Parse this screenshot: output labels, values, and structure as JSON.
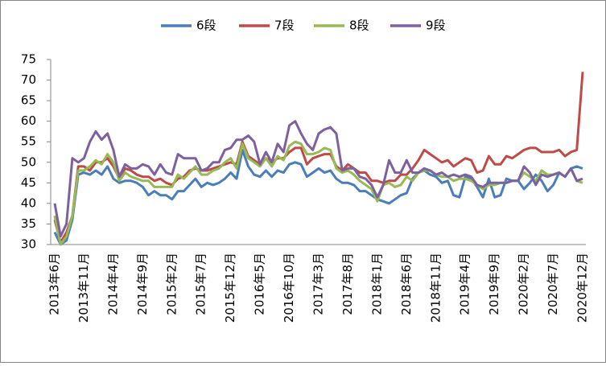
{
  "chart_data": {
    "type": "line",
    "categories": [
      "2013年6月",
      null,
      null,
      null,
      null,
      "2013年11月",
      null,
      null,
      null,
      null,
      "2014年4月",
      null,
      null,
      null,
      null,
      "2014年9月",
      null,
      null,
      null,
      null,
      "2015年2月",
      null,
      null,
      null,
      null,
      "2015年7月",
      null,
      null,
      null,
      null,
      "2015年12月",
      null,
      null,
      null,
      null,
      "2016年5月",
      null,
      null,
      null,
      null,
      "2016年10月",
      null,
      null,
      null,
      null,
      "2017年3月",
      null,
      null,
      null,
      null,
      "2017年8月",
      null,
      null,
      null,
      null,
      "2018年1月",
      null,
      null,
      null,
      null,
      "2018年6月",
      null,
      null,
      null,
      null,
      "2018年11月",
      null,
      null,
      null,
      null,
      "2019年4月",
      null,
      null,
      null,
      null,
      "2019年9月",
      null,
      null,
      null,
      null,
      "2020年2月",
      null,
      null,
      null,
      null,
      "2020年7月",
      null,
      null,
      null,
      null,
      "2020年12月"
    ],
    "series": [
      {
        "name": "6段",
        "color": "#4a7ebb",
        "values": [
          33,
          30,
          31,
          36,
          47,
          47.5,
          47,
          48,
          47,
          49,
          46,
          45,
          45.5,
          45.5,
          45,
          44,
          42,
          43,
          42,
          42,
          41,
          43,
          43,
          44.5,
          46,
          44,
          45,
          44.5,
          45,
          46,
          47.5,
          46,
          53,
          49,
          47,
          46.5,
          48,
          46.5,
          48,
          47.5,
          49.5,
          50,
          49.5,
          46.5,
          47.5,
          48.5,
          47.5,
          48,
          46,
          45,
          45,
          44.5,
          43,
          43,
          42,
          41,
          40.5,
          40,
          41,
          42,
          42.5,
          46,
          47.5,
          48,
          47,
          46.5,
          45,
          45.5,
          42,
          41.5,
          46.5,
          46,
          44,
          41.5,
          46,
          41.5,
          42,
          46,
          45.5,
          45.5,
          43.5,
          45,
          47,
          45.5,
          43,
          44.5,
          47.5,
          46.5,
          48.5,
          49,
          48.5
        ]
      },
      {
        "name": "7段",
        "color": "#be4b48",
        "values": [
          36,
          30.5,
          33,
          37,
          49,
          49,
          48,
          50,
          50,
          51,
          49,
          46,
          48.5,
          48,
          47,
          46.5,
          46.5,
          45.5,
          46,
          45,
          44.5,
          46,
          46.5,
          48,
          48.5,
          48,
          48,
          48.5,
          49,
          49.5,
          50,
          49.5,
          55,
          51.5,
          50.5,
          49.5,
          51,
          50,
          51,
          51,
          52.5,
          53.5,
          53.5,
          49.5,
          51,
          51.5,
          52,
          52,
          49,
          48,
          49.5,
          48.5,
          47.5,
          47.5,
          45.5,
          45.5,
          45,
          45.5,
          45.5,
          47,
          47,
          48.5,
          50.5,
          53,
          52,
          51,
          50,
          50.5,
          49,
          50,
          51,
          50.5,
          47.5,
          48,
          51.5,
          49.5,
          49.5,
          51.5,
          51,
          52,
          53,
          53.5,
          53.5,
          52.5,
          52.5,
          52.5,
          53,
          51.5,
          52.5,
          53,
          72
        ]
      },
      {
        "name": "8段",
        "color": "#98b954",
        "values": [
          37,
          30,
          32,
          37,
          48,
          48,
          49,
          50.5,
          49.5,
          52,
          50,
          45.5,
          47.5,
          46.5,
          46,
          45.5,
          45.5,
          44,
          44,
          44,
          44,
          47,
          46,
          47.5,
          49,
          47,
          47,
          48,
          48.5,
          50,
          51,
          48.5,
          54.5,
          51,
          50,
          49,
          51,
          49,
          51.5,
          50.5,
          54,
          55,
          54.5,
          52,
          52,
          52.5,
          53.5,
          53,
          48.5,
          47.5,
          48,
          47,
          45.5,
          44.5,
          43.5,
          40.5,
          44.5,
          45,
          44,
          44.5,
          46.5,
          45.5,
          47.5,
          48,
          48,
          47,
          46.5,
          46.5,
          45.5,
          46,
          46,
          45.5,
          44.5,
          43.5,
          44.5,
          44.5,
          45,
          45,
          45.5,
          45.5,
          47.5,
          46.5,
          45.5,
          48,
          47,
          47,
          47.5,
          46.5,
          48.5,
          45.5,
          45
        ]
      },
      {
        "name": "9段",
        "color": "#7d60a0",
        "values": [
          40,
          32,
          35,
          51,
          50,
          51,
          55,
          57.5,
          55.5,
          57,
          53,
          46.5,
          49.5,
          48.5,
          48.5,
          49.5,
          49,
          47,
          49.5,
          47.5,
          47,
          52,
          51,
          51,
          51,
          48,
          48.5,
          50,
          50,
          53,
          53.5,
          55.5,
          55.5,
          56.5,
          55,
          49.5,
          52.5,
          50,
          54.5,
          52.5,
          59,
          60,
          57,
          54.5,
          53,
          57,
          58,
          58.5,
          57,
          48,
          48.5,
          48.5,
          46.5,
          46,
          44.5,
          41.5,
          44.5,
          50.5,
          47.5,
          47.5,
          50.5,
          47.5,
          47.5,
          48.5,
          48,
          47,
          47.5,
          46.5,
          47,
          46.5,
          47,
          46.5,
          44.5,
          44,
          45,
          45,
          45,
          45,
          45.5,
          45.5,
          49,
          47.5,
          44.5,
          47,
          46.5,
          47,
          47.5,
          46.5,
          48.5,
          45.5,
          46
        ]
      }
    ],
    "ylim": [
      30,
      75
    ],
    "yticks": [
      30,
      35,
      40,
      45,
      50,
      55,
      60,
      65,
      70,
      75
    ],
    "legend": "top"
  }
}
